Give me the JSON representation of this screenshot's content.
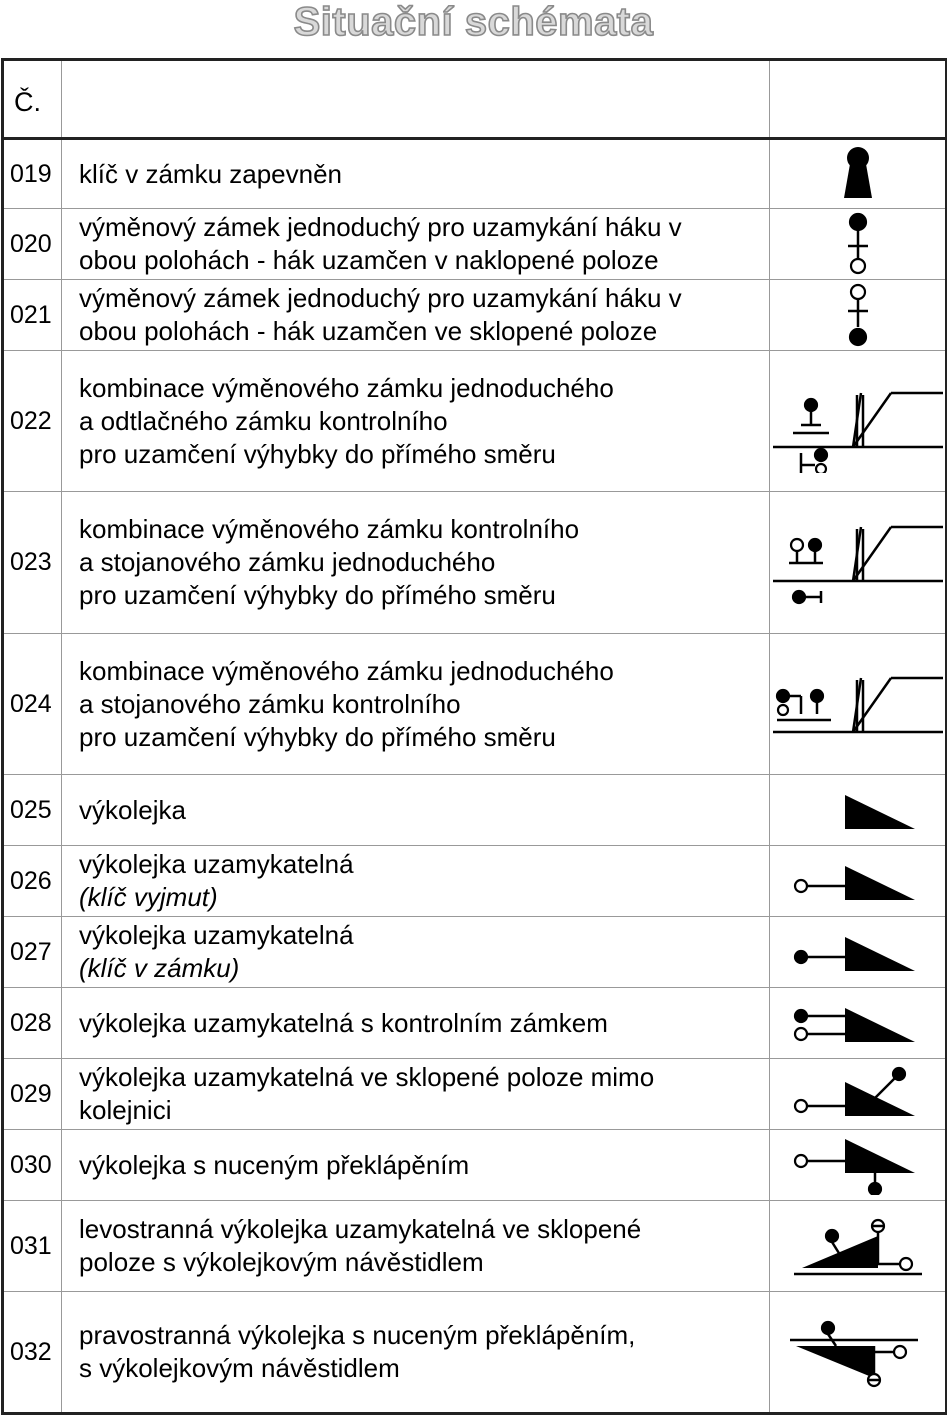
{
  "title": "Situační schémata",
  "header": {
    "num": "Č.",
    "desc": "",
    "sym": ""
  },
  "rows": [
    {
      "num": "019",
      "lines": [
        "klíč v zámku zapevněn"
      ],
      "italic": "",
      "symbol": "key-locked-icon"
    },
    {
      "num": "020",
      "lines": [
        "výměnový zámek jednoduchý pro uzamykání háku v",
        "obou polohách - hák uzamčen v naklopené poloze"
      ],
      "italic": "",
      "symbol": "switch-lock-tilted-icon"
    },
    {
      "num": "021",
      "lines": [
        "výměnový zámek jednoduchý pro uzamykání háku v",
        "obou polohách - hák uzamčen ve sklopené poloze"
      ],
      "italic": "",
      "symbol": "switch-lock-folded-icon"
    },
    {
      "num": "022",
      "lines": [
        "kombinace výměnového zámku jednoduchého",
        "a odtlačného zámku kontrolního",
        "pro uzamčení výhybky do přímého směru"
      ],
      "italic": "",
      "symbol": "switch-combo-a-icon"
    },
    {
      "num": "023",
      "lines": [
        "kombinace výměnového zámku kontrolního",
        "a stojanového zámku jednoduchého",
        "pro uzamčení výhybky do přímého směru"
      ],
      "italic": "",
      "symbol": "switch-combo-b-icon"
    },
    {
      "num": "024",
      "lines": [
        "kombinace výměnového zámku jednoduchého",
        "a stojanového zámku kontrolního",
        "pro uzamčení výhybky do přímého směru"
      ],
      "italic": "",
      "symbol": "switch-combo-c-icon"
    },
    {
      "num": "025",
      "lines": [
        "výkolejka"
      ],
      "italic": "",
      "symbol": "derailer-icon"
    },
    {
      "num": "026",
      "lines": [
        "výkolejka uzamykatelná"
      ],
      "italic": "(klíč vyjmut)",
      "symbol": "derailer-key-removed-icon"
    },
    {
      "num": "027",
      "lines": [
        "výkolejka uzamykatelná"
      ],
      "italic": "(klíč v zámku)",
      "symbol": "derailer-key-in-icon"
    },
    {
      "num": "028",
      "lines": [
        "výkolejka uzamykatelná s kontrolním zámkem"
      ],
      "italic": "",
      "symbol": "derailer-control-lock-icon"
    },
    {
      "num": "029",
      "lines": [
        "výkolejka uzamykatelná ve sklopené poloze mimo",
        "kolejnici"
      ],
      "italic": "",
      "symbol": "derailer-folded-icon"
    },
    {
      "num": "030",
      "lines": [
        "výkolejka s nuceným překlápěním"
      ],
      "italic": "",
      "symbol": "derailer-forced-icon"
    },
    {
      "num": "031",
      "lines": [
        "levostranná výkolejka uzamykatelná ve sklopené",
        "poloze s výkolejkovým návěstidlem"
      ],
      "italic": "",
      "symbol": "derailer-left-signal-icon"
    },
    {
      "num": "032",
      "lines": [
        "pravostranná výkolejka s nuceným překlápěním,",
        "s výkolejkovým návěstidlem"
      ],
      "italic": "",
      "symbol": "derailer-right-signal-icon"
    }
  ]
}
